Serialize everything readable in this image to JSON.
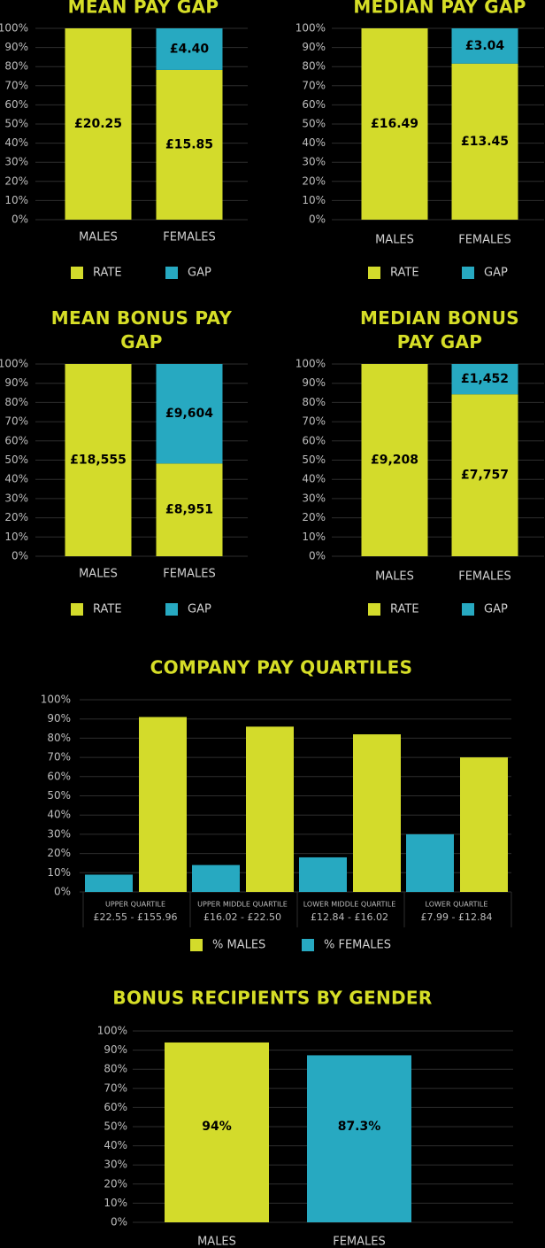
{
  "chart_data": [
    {
      "type": "stacked100",
      "title": "MEAN PAY GAP",
      "categories": [
        "MALES",
        "FEMALES"
      ],
      "series": [
        {
          "name": "RATE",
          "color": "#d3db2b",
          "values": [
            20.25,
            15.85
          ],
          "value_labels": [
            "£20.25",
            "£15.85"
          ]
        },
        {
          "name": "GAP",
          "color": "#27a9c1",
          "values": [
            0,
            4.4
          ],
          "value_labels": [
            null,
            "£4.40"
          ]
        }
      ],
      "ylim": [
        0,
        100
      ],
      "yticks": [
        {
          "value": 0,
          "label": "0%"
        },
        {
          "value": 10,
          "label": "10%"
        },
        {
          "value": 20,
          "label": "20%"
        },
        {
          "value": 30,
          "label": "30%"
        },
        {
          "value": 40,
          "label": "40%"
        },
        {
          "value": 50,
          "label": "50%"
        },
        {
          "value": 60,
          "label": "60%"
        },
        {
          "value": 70,
          "label": "70%"
        },
        {
          "value": 80,
          "label": "80%"
        },
        {
          "value": 90,
          "label": "90%"
        },
        {
          "value": 100,
          "label": "100%"
        }
      ],
      "grid": true
    },
    {
      "type": "stacked100",
      "title": "MEDIAN PAY GAP",
      "categories": [
        "MALES",
        "FEMALES"
      ],
      "series": [
        {
          "name": "RATE",
          "color": "#d3db2b",
          "values": [
            16.49,
            13.45
          ],
          "value_labels": [
            "£16.49",
            "£13.45"
          ]
        },
        {
          "name": "GAP",
          "color": "#27a9c1",
          "values": [
            0,
            3.04
          ],
          "value_labels": [
            null,
            "£3.04"
          ]
        }
      ],
      "ylim": [
        0,
        100
      ],
      "yticks": [
        {
          "value": 0,
          "label": "0%"
        },
        {
          "value": 10,
          "label": "10%"
        },
        {
          "value": 20,
          "label": "20%"
        },
        {
          "value": 30,
          "label": "30%"
        },
        {
          "value": 40,
          "label": "40%"
        },
        {
          "value": 50,
          "label": "50%"
        },
        {
          "value": 60,
          "label": "60%"
        },
        {
          "value": 70,
          "label": "70%"
        },
        {
          "value": 80,
          "label": "80%"
        },
        {
          "value": 90,
          "label": "90%"
        },
        {
          "value": 100,
          "label": "100%"
        }
      ],
      "grid": true
    },
    {
      "type": "stacked100",
      "title": "MEAN BONUS PAY GAP",
      "categories": [
        "MALES",
        "FEMALES"
      ],
      "series": [
        {
          "name": "RATE",
          "color": "#d3db2b",
          "values": [
            18555,
            8951
          ],
          "value_labels": [
            "£18,555",
            "£8,951"
          ]
        },
        {
          "name": "GAP",
          "color": "#27a9c1",
          "values": [
            0,
            9604
          ],
          "value_labels": [
            null,
            "£9,604"
          ]
        }
      ],
      "ylim": [
        0,
        100
      ],
      "yticks": [
        {
          "value": 0,
          "label": "0%"
        },
        {
          "value": 10,
          "label": "10%"
        },
        {
          "value": 20,
          "label": "20%"
        },
        {
          "value": 30,
          "label": "30%"
        },
        {
          "value": 40,
          "label": "40%"
        },
        {
          "value": 50,
          "label": "50%"
        },
        {
          "value": 60,
          "label": "60%"
        },
        {
          "value": 70,
          "label": "70%"
        },
        {
          "value": 80,
          "label": "80%"
        },
        {
          "value": 90,
          "label": "90%"
        },
        {
          "value": 100,
          "label": "100%"
        }
      ],
      "grid": true
    },
    {
      "type": "stacked100",
      "title": "MEDIAN BONUS PAY GAP",
      "categories": [
        "MALES",
        "FEMALES"
      ],
      "series": [
        {
          "name": "RATE",
          "color": "#d3db2b",
          "values": [
            9208,
            7757
          ],
          "value_labels": [
            "£9,208",
            "£7,757"
          ]
        },
        {
          "name": "GAP",
          "color": "#27a9c1",
          "values": [
            0,
            1452
          ],
          "value_labels": [
            null,
            "£1,452"
          ]
        }
      ],
      "ylim": [
        0,
        100
      ],
      "yticks": [
        {
          "value": 0,
          "label": "0%"
        },
        {
          "value": 10,
          "label": "10%"
        },
        {
          "value": 20,
          "label": "20%"
        },
        {
          "value": 30,
          "label": "30%"
        },
        {
          "value": 40,
          "label": "40%"
        },
        {
          "value": 50,
          "label": "50%"
        },
        {
          "value": 60,
          "label": "60%"
        },
        {
          "value": 70,
          "label": "70%"
        },
        {
          "value": 80,
          "label": "80%"
        },
        {
          "value": 90,
          "label": "90%"
        },
        {
          "value": 100,
          "label": "100%"
        }
      ],
      "grid": true
    },
    {
      "type": "grouped_bar",
      "title": "COMPANY PAY QUARTILES",
      "categories": [
        "UPPER QUARTILE",
        "UPPER MIDDLE QUARTILE",
        "LOWER MIDDLE QUARTILE",
        "LOWER QUARTILE"
      ],
      "category_ranges": [
        "£22.55 - £155.96",
        "£16.02 - £22.50",
        "£12.84 - £16.02",
        "£7.99 - £12.84"
      ],
      "series": [
        {
          "name": "% MALES",
          "color": "#d3db2b",
          "values": [
            91,
            86,
            82,
            70
          ]
        },
        {
          "name": "% FEMALES",
          "color": "#27a9c1",
          "values": [
            9,
            14,
            18,
            30
          ]
        }
      ],
      "ylim": [
        0,
        100
      ],
      "yticks": [
        {
          "value": 0,
          "label": "0%"
        },
        {
          "value": 10,
          "label": "10%"
        },
        {
          "value": 20,
          "label": "20%"
        },
        {
          "value": 30,
          "label": "30%"
        },
        {
          "value": 40,
          "label": "40%"
        },
        {
          "value": 50,
          "label": "50%"
        },
        {
          "value": 60,
          "label": "60%"
        },
        {
          "value": 70,
          "label": "70%"
        },
        {
          "value": 80,
          "label": "80%"
        },
        {
          "value": 90,
          "label": "90%"
        },
        {
          "value": 100,
          "label": "100%"
        }
      ],
      "grid": true
    },
    {
      "type": "bar",
      "title": "BONUS RECIPIENTS BY GENDER",
      "categories": [
        "MALES",
        "FEMALES"
      ],
      "values": [
        94,
        87.3
      ],
      "value_labels": [
        "94%",
        "87.3%"
      ],
      "colors": [
        "#d3db2b",
        "#27a9c1"
      ],
      "ylim": [
        0,
        100
      ],
      "yticks": [
        {
          "value": 0,
          "label": "0%"
        },
        {
          "value": 10,
          "label": "10%"
        },
        {
          "value": 20,
          "label": "20%"
        },
        {
          "value": 30,
          "label": "30%"
        },
        {
          "value": 40,
          "label": "40%"
        },
        {
          "value": 50,
          "label": "50%"
        },
        {
          "value": 60,
          "label": "60%"
        },
        {
          "value": 70,
          "label": "70%"
        },
        {
          "value": 80,
          "label": "80%"
        },
        {
          "value": 90,
          "label": "90%"
        },
        {
          "value": 100,
          "label": "100%"
        }
      ],
      "grid": true
    }
  ]
}
